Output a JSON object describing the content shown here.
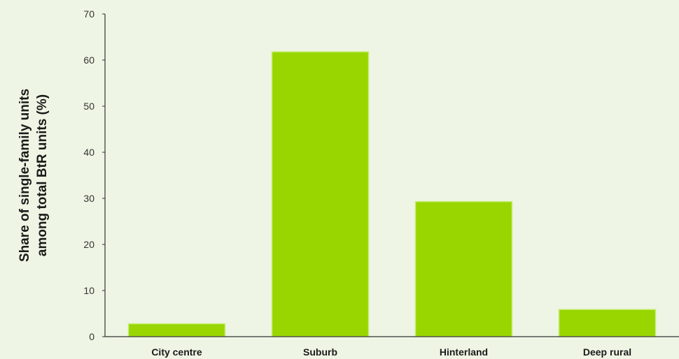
{
  "chart_data": {
    "type": "bar",
    "title": "",
    "xlabel": "",
    "ylabel": [
      "Share of single-family units",
      "among total BtR units (%)"
    ],
    "categories": [
      "City centre",
      "Suburb",
      "Hinterland",
      "Deep rural"
    ],
    "values": [
      2.8,
      61.8,
      29.3,
      5.9
    ],
    "ylim": [
      0,
      70
    ],
    "yticks": [
      0,
      10,
      20,
      30,
      40,
      50,
      60,
      70
    ],
    "grid": false,
    "legend": "none"
  },
  "colors": {
    "background": "#eef5e4",
    "bar": "#99d600",
    "bar_edge": "#c8ec7a",
    "axis": "#333333"
  }
}
